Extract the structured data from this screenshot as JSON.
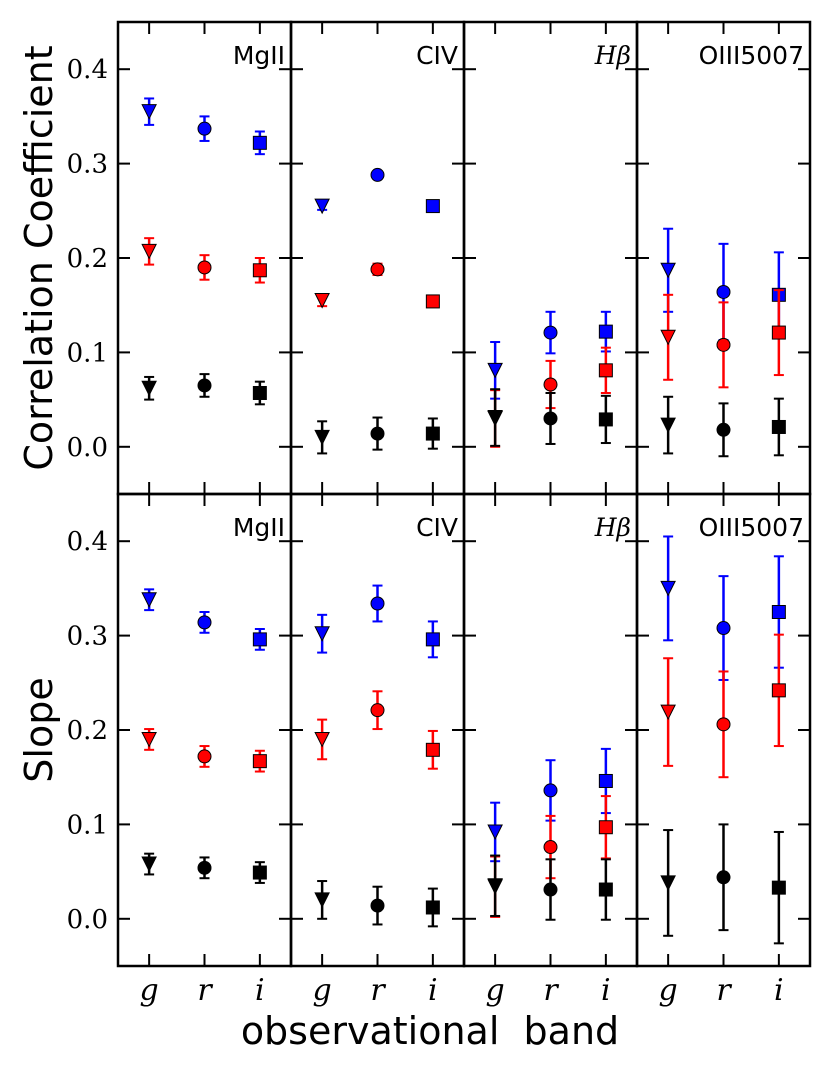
{
  "chart_data": {
    "type": "scatter",
    "xlabel": "observational  band",
    "categories": [
      "g",
      "r",
      "i"
    ],
    "ylim": [
      -0.05,
      0.45
    ],
    "yticks": [
      "0.0",
      "0.1",
      "0.2",
      "0.3",
      "0.4"
    ],
    "panel_titles": [
      "MgII",
      "CIV",
      "Hβ",
      "OIII5007"
    ],
    "series_colors": {
      "top": "#0000ff",
      "middle": "#ff0000",
      "bottom": "#000000"
    },
    "rows": [
      {
        "ylabel": "Correlation Coefficient",
        "panels": [
          {
            "title": "MgII",
            "series": [
              {
                "name": "top",
                "values": [
                  0.355,
                  0.337,
                  0.322
                ],
                "err": [
                  0.014,
                  0.013,
                  0.012
                ]
              },
              {
                "name": "middle",
                "values": [
                  0.207,
                  0.19,
                  0.187
                ],
                "err": [
                  0.014,
                  0.013,
                  0.013
                ]
              },
              {
                "name": "bottom",
                "values": [
                  0.062,
                  0.065,
                  0.057
                ],
                "err": [
                  0.012,
                  0.012,
                  0.012
                ]
              }
            ]
          },
          {
            "title": "CIV",
            "series": [
              {
                "name": "top",
                "values": [
                  0.255,
                  0.288,
                  0.255
                ],
                "err": [
                  0.004,
                  0.004,
                  0.004
                ]
              },
              {
                "name": "middle",
                "values": [
                  0.155,
                  0.188,
                  0.154
                ],
                "err": [
                  0.006,
                  0.006,
                  0.004
                ]
              },
              {
                "name": "bottom",
                "values": [
                  0.01,
                  0.014,
                  0.014
                ],
                "err": [
                  0.017,
                  0.017,
                  0.016
                ]
              }
            ]
          },
          {
            "title": "Hβ",
            "series": [
              {
                "name": "top",
                "values": [
                  0.081,
                  0.121,
                  0.122
                ],
                "err": [
                  0.03,
                  0.022,
                  0.021
                ]
              },
              {
                "name": "middle",
                "values": [
                  0.03,
                  0.066,
                  0.081
                ],
                "err": [
                  0.03,
                  0.025,
                  0.024
                ]
              },
              {
                "name": "bottom",
                "values": [
                  0.031,
                  0.03,
                  0.029
                ],
                "err": [
                  0.03,
                  0.027,
                  0.025
                ]
              }
            ]
          },
          {
            "title": "OIII5007",
            "series": [
              {
                "name": "top",
                "values": [
                  0.187,
                  0.164,
                  0.161
                ],
                "err": [
                  0.044,
                  0.051,
                  0.045
                ]
              },
              {
                "name": "middle",
                "values": [
                  0.116,
                  0.108,
                  0.121
                ],
                "err": [
                  0.045,
                  0.045,
                  0.045
                ]
              },
              {
                "name": "bottom",
                "values": [
                  0.023,
                  0.018,
                  0.021
                ],
                "err": [
                  0.03,
                  0.028,
                  0.03
                ]
              }
            ]
          }
        ]
      },
      {
        "ylabel": "Slope",
        "panels": [
          {
            "title": "MgII",
            "series": [
              {
                "name": "top",
                "values": [
                  0.338,
                  0.314,
                  0.296
                ],
                "err": [
                  0.011,
                  0.011,
                  0.011
                ]
              },
              {
                "name": "middle",
                "values": [
                  0.19,
                  0.172,
                  0.167
                ],
                "err": [
                  0.011,
                  0.011,
                  0.011
                ]
              },
              {
                "name": "bottom",
                "values": [
                  0.058,
                  0.054,
                  0.049
                ],
                "err": [
                  0.011,
                  0.011,
                  0.011
                ]
              }
            ]
          },
          {
            "title": "CIV",
            "series": [
              {
                "name": "top",
                "values": [
                  0.302,
                  0.334,
                  0.296
                ],
                "err": [
                  0.02,
                  0.019,
                  0.019
                ]
              },
              {
                "name": "middle",
                "values": [
                  0.19,
                  0.221,
                  0.179
                ],
                "err": [
                  0.021,
                  0.02,
                  0.02
                ]
              },
              {
                "name": "bottom",
                "values": [
                  0.02,
                  0.014,
                  0.012
                ],
                "err": [
                  0.02,
                  0.02,
                  0.02
                ]
              }
            ]
          },
          {
            "title": "Hβ",
            "series": [
              {
                "name": "top",
                "values": [
                  0.092,
                  0.136,
                  0.146
                ],
                "err": [
                  0.031,
                  0.032,
                  0.034
                ]
              },
              {
                "name": "middle",
                "values": [
                  0.034,
                  0.076,
                  0.097
                ],
                "err": [
                  0.032,
                  0.033,
                  0.033
                ]
              },
              {
                "name": "bottom",
                "values": [
                  0.035,
                  0.031,
                  0.031
                ],
                "err": [
                  0.032,
                  0.032,
                  0.032
                ]
              }
            ]
          },
          {
            "title": "OIII5007",
            "series": [
              {
                "name": "top",
                "values": [
                  0.35,
                  0.308,
                  0.325
                ],
                "err": [
                  0.055,
                  0.055,
                  0.059
                ]
              },
              {
                "name": "middle",
                "values": [
                  0.219,
                  0.206,
                  0.242
                ],
                "err": [
                  0.057,
                  0.056,
                  0.059
                ]
              },
              {
                "name": "bottom",
                "values": [
                  0.038,
                  0.044,
                  0.033
                ],
                "err": [
                  0.056,
                  0.056,
                  0.059
                ]
              }
            ]
          }
        ]
      }
    ]
  }
}
